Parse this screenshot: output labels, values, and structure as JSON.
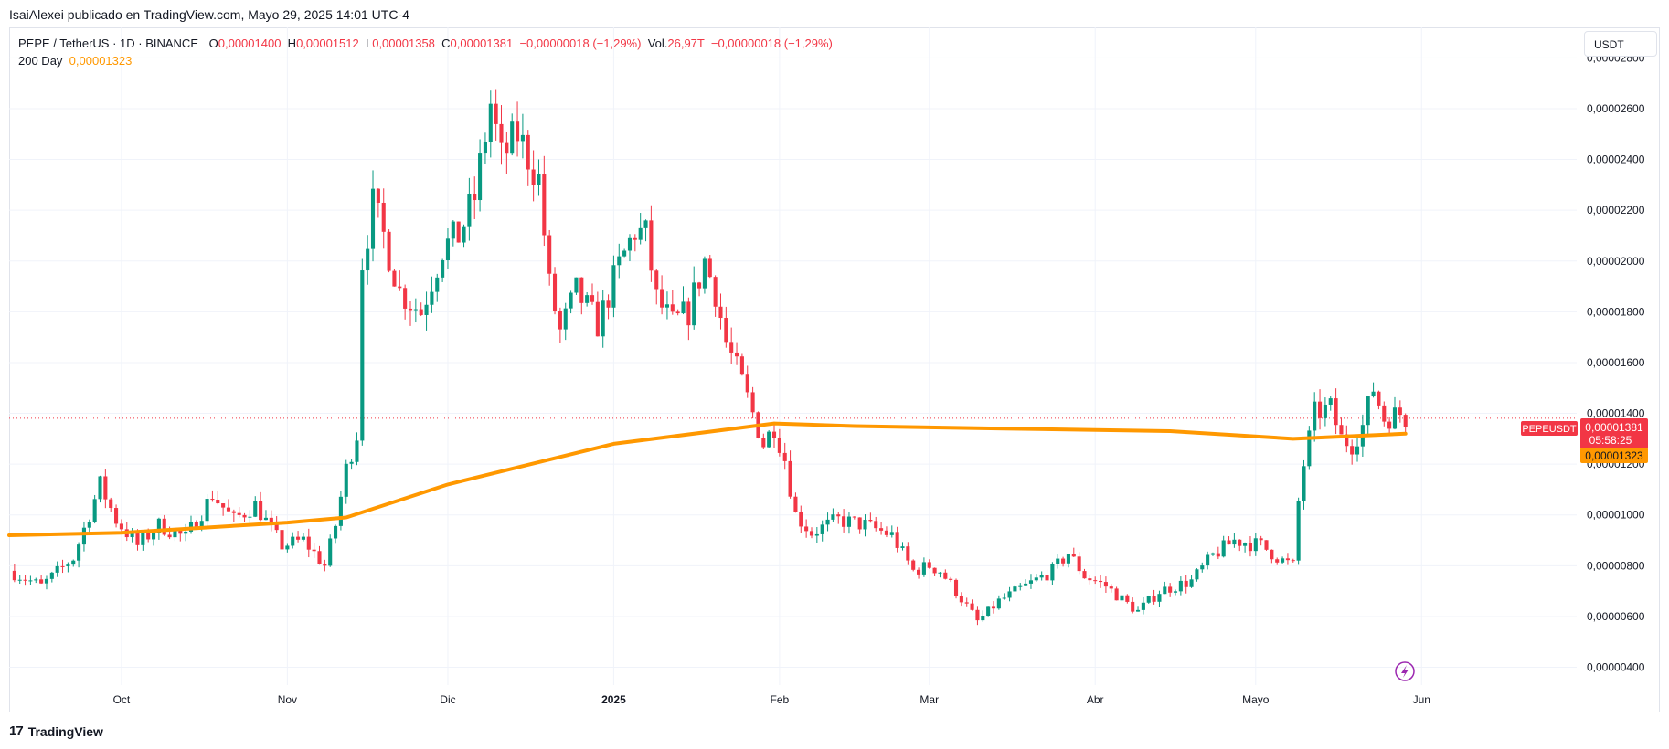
{
  "header": {
    "credit": "IsaiAlexei publicado en TradingView.com, Mayo 29, 2025 14:01 UTC-4"
  },
  "legend": {
    "symbol": "PEPE / TetherUS · 1D · BINANCE",
    "o_label": "O",
    "o_value": "0,00001400",
    "h_label": "H",
    "h_value": "0,00001512",
    "l_label": "L",
    "l_value": "0,00001358",
    "c_label": "C",
    "c_value": "0,00001381",
    "change": "−0,00000018 (−1,29%)",
    "vol_label": "Vol.",
    "vol_value": "26,97T",
    "vol_change": "−0,00000018 (−1,29%)",
    "ma_label": "200 Day",
    "ma_value": "0,00001323"
  },
  "currency_button": "USDT",
  "price_tags": {
    "symbol_tag": "PEPEUSDT",
    "last_price": "0,00001381",
    "countdown": "05:58:25",
    "ma_price": "0,00001323"
  },
  "footer": {
    "brand": "TradingView",
    "brand_mark": "17"
  },
  "colors": {
    "up": "#089981",
    "down": "#f23645",
    "ma": "#ff9800",
    "grid": "#f0f3fa",
    "text": "#131722"
  },
  "chart_data": {
    "type": "candlestick",
    "title": "PEPE / TetherUS · 1D · BINANCE",
    "x_axis_labels": [
      {
        "label": "Oct",
        "date": "2024-10-01"
      },
      {
        "label": "Nov",
        "date": "2024-11-01"
      },
      {
        "label": "Dic",
        "date": "2024-12-01"
      },
      {
        "label": "2025",
        "date": "2025-01-01"
      },
      {
        "label": "Feb",
        "date": "2025-02-01"
      },
      {
        "label": "Mar",
        "date": "2025-03-01"
      },
      {
        "label": "Abr",
        "date": "2025-04-01"
      },
      {
        "label": "Mayo",
        "date": "2025-05-01"
      },
      {
        "label": "Jun",
        "date": "2025-06-01"
      }
    ],
    "y_axis_labels": [
      "0,00002800",
      "0,00002600",
      "0,00002400",
      "0,00002200",
      "0,00002000",
      "0,00001800",
      "0,00001600",
      "0,00001400",
      "0,00001200",
      "0,00001000",
      "0,00000800",
      "0,00000600",
      "0,00000400"
    ],
    "y_ticks": [
      2.8e-05,
      2.6e-05,
      2.4e-05,
      2.2e-05,
      2e-05,
      1.8e-05,
      1.6e-05,
      1.4e-05,
      1.2e-05,
      1e-05,
      8e-06,
      6e-06,
      4e-06
    ],
    "ylim": [
      3.3e-06,
      2.92e-05
    ],
    "x_range": [
      "2024-09-10",
      "2025-06-30"
    ],
    "last_price_value": 1.381e-05,
    "ma_current_value": 1.323e-05,
    "price_anchors": [
      [
        "2024-09-10",
        7.8e-06
      ],
      [
        "2024-09-16",
        7.2e-06
      ],
      [
        "2024-09-22",
        8.3e-06
      ],
      [
        "2024-09-27",
        1.12e-05
      ],
      [
        "2024-09-30",
        9.8e-06
      ],
      [
        "2024-10-04",
        8.8e-06
      ],
      [
        "2024-10-08",
        9.6e-06
      ],
      [
        "2024-10-13",
        9.1e-06
      ],
      [
        "2024-10-18",
        1.08e-05
      ],
      [
        "2024-10-22",
        9.8e-06
      ],
      [
        "2024-10-26",
        1.04e-05
      ],
      [
        "2024-10-31",
        8.8e-06
      ],
      [
        "2024-11-04",
        9e-06
      ],
      [
        "2024-11-08",
        8e-06
      ],
      [
        "2024-11-10",
        9.6e-06
      ],
      [
        "2024-11-12",
        1.18e-05
      ],
      [
        "2024-11-14",
        1.32e-05
      ],
      [
        "2024-11-15",
        2e-05
      ],
      [
        "2024-11-17",
        2.22e-05
      ],
      [
        "2024-11-19",
        2.1e-05
      ],
      [
        "2024-11-22",
        1.88e-05
      ],
      [
        "2024-11-26",
        1.8e-05
      ],
      [
        "2024-11-30",
        2.05e-05
      ],
      [
        "2024-12-03",
        2.1e-05
      ],
      [
        "2024-12-06",
        2.25e-05
      ],
      [
        "2024-12-09",
        2.62e-05
      ],
      [
        "2024-12-11",
        2.4e-05
      ],
      [
        "2024-12-14",
        2.5e-05
      ],
      [
        "2024-12-18",
        2.32e-05
      ],
      [
        "2024-12-20",
        1.9e-05
      ],
      [
        "2024-12-22",
        1.72e-05
      ],
      [
        "2024-12-25",
        1.88e-05
      ],
      [
        "2024-12-29",
        1.75e-05
      ],
      [
        "2025-01-02",
        1.98e-05
      ],
      [
        "2025-01-05",
        2.12e-05
      ],
      [
        "2025-01-07",
        2.1e-05
      ],
      [
        "2025-01-09",
        1.85e-05
      ],
      [
        "2025-01-12",
        1.75e-05
      ],
      [
        "2025-01-15",
        1.8e-05
      ],
      [
        "2025-01-18",
        2e-05
      ],
      [
        "2025-01-20",
        1.88e-05
      ],
      [
        "2025-01-22",
        1.68e-05
      ],
      [
        "2025-01-25",
        1.52e-05
      ],
      [
        "2025-01-27",
        1.4e-05
      ],
      [
        "2025-01-29",
        1.28e-05
      ],
      [
        "2025-01-31",
        1.35e-05
      ],
      [
        "2025-02-02",
        1.22e-05
      ],
      [
        "2025-02-04",
        1e-05
      ],
      [
        "2025-02-07",
        9.3e-06
      ],
      [
        "2025-02-12",
        9.8e-06
      ],
      [
        "2025-02-17",
        9.6e-06
      ],
      [
        "2025-02-22",
        9.2e-06
      ],
      [
        "2025-02-26",
        7.8e-06
      ],
      [
        "2025-03-01",
        8e-06
      ],
      [
        "2025-03-03",
        7.8e-06
      ],
      [
        "2025-03-06",
        7e-06
      ],
      [
        "2025-03-10",
        5.8e-06
      ],
      [
        "2025-03-14",
        6.6e-06
      ],
      [
        "2025-03-19",
        7.2e-06
      ],
      [
        "2025-03-24",
        7.8e-06
      ],
      [
        "2025-03-27",
        8.5e-06
      ],
      [
        "2025-03-30",
        7.6e-06
      ],
      [
        "2025-04-03",
        7.2e-06
      ],
      [
        "2025-04-07",
        6.5e-06
      ],
      [
        "2025-04-09",
        6.2e-06
      ],
      [
        "2025-04-13",
        7e-06
      ],
      [
        "2025-04-19",
        7.4e-06
      ],
      [
        "2025-04-23",
        8.4e-06
      ],
      [
        "2025-04-27",
        9e-06
      ],
      [
        "2025-05-02",
        8.8e-06
      ],
      [
        "2025-05-06",
        8.2e-06
      ],
      [
        "2025-05-08",
        8e-06
      ],
      [
        "2025-05-09",
        1.05e-05
      ],
      [
        "2025-05-10",
        1.2e-05
      ],
      [
        "2025-05-12",
        1.4e-05
      ],
      [
        "2025-05-15",
        1.42e-05
      ],
      [
        "2025-05-17",
        1.3e-05
      ],
      [
        "2025-05-19",
        1.28e-05
      ],
      [
        "2025-05-21",
        1.35e-05
      ],
      [
        "2025-05-23",
        1.5e-05
      ],
      [
        "2025-05-25",
        1.38e-05
      ],
      [
        "2025-05-28",
        1.4e-05
      ],
      [
        "2025-05-29",
        1.38e-05
      ]
    ],
    "ma_200": [
      [
        "2024-09-10",
        9.2e-06
      ],
      [
        "2024-10-01",
        9.3e-06
      ],
      [
        "2024-11-01",
        9.7e-06
      ],
      [
        "2024-11-12",
        9.9e-06
      ],
      [
        "2024-12-01",
        1.12e-05
      ],
      [
        "2025-01-01",
        1.28e-05
      ],
      [
        "2025-01-31",
        1.36e-05
      ],
      [
        "2025-02-15",
        1.35e-05
      ],
      [
        "2025-03-15",
        1.34e-05
      ],
      [
        "2025-04-15",
        1.33e-05
      ],
      [
        "2025-05-08",
        1.3e-05
      ],
      [
        "2025-05-29",
        1.32e-05
      ]
    ]
  }
}
